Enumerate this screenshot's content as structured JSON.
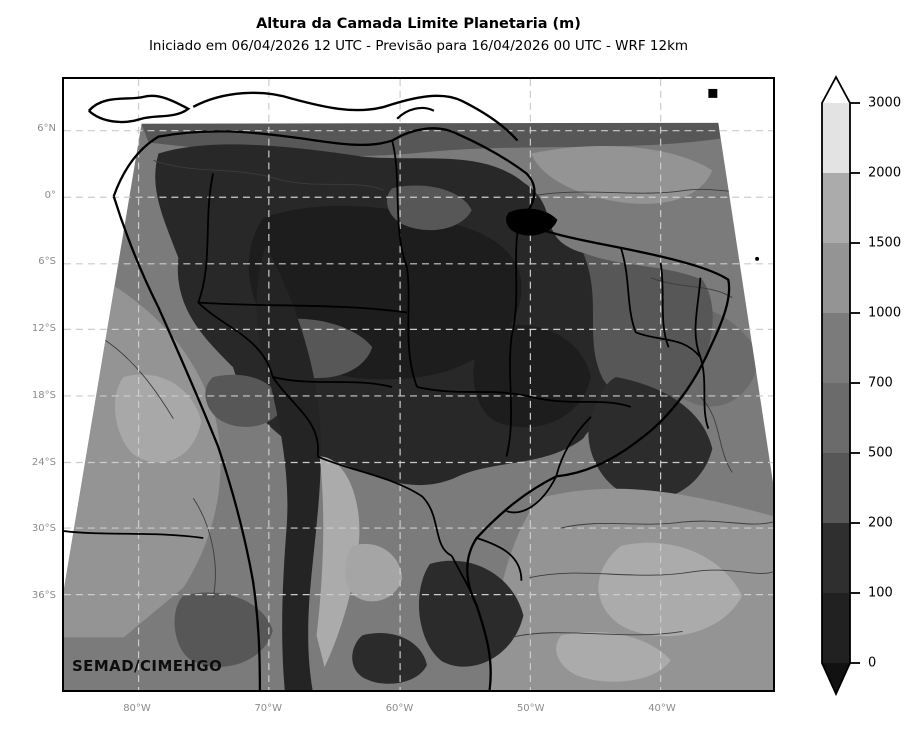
{
  "figure": {
    "title": "Altura da Camada Limite Planetaria (m)",
    "subtitle": "Iniciado em 06/04/2026 12 UTC - Previsão para 16/04/2026 00 UTC - WRF 12km",
    "watermark": "SEMAD/CIMEHGO"
  },
  "axes": {
    "lat_ticks": [
      "6°N",
      "0°",
      "6°S",
      "12°S",
      "18°S",
      "24°S",
      "30°S",
      "36°S"
    ],
    "lon_ticks": [
      "80°W",
      "70°W",
      "60°W",
      "50°W",
      "40°W"
    ]
  },
  "colorbar": {
    "tick_labels_top_to_bottom": [
      "3000",
      "2000",
      "1500",
      "1000",
      "700",
      "500",
      "200",
      "100",
      "0"
    ],
    "segment_colors_top_to_bottom": [
      "#e3e3e3",
      "#ababab",
      "#949494",
      "#7b7b7b",
      "#6b6b6b",
      "#575757",
      "#2f2f2f",
      "#212121"
    ],
    "extend_over_color": "#ffffff",
    "extend_under_color": "#111111"
  },
  "chart_data": {
    "type": "heatmap",
    "variant": "filled contour map over South America (grayscale, WRF model domain)",
    "title": "Altura da Camada Limite Planetaria (m)",
    "subtitle": "Iniciado em 06/04/2026 12 UTC - Previsão para 16/04/2026 00 UTC - WRF 12km",
    "variable": "Altura da Camada Limite Planetaria",
    "units": "m",
    "levels": [
      0,
      100,
      200,
      500,
      700,
      1000,
      1500,
      2000,
      3000
    ],
    "level_colors_low_to_high": [
      "#212121",
      "#2f2f2f",
      "#575757",
      "#6b6b6b",
      "#7b7b7b",
      "#949494",
      "#ababab",
      "#e3e3e3"
    ],
    "colorbar_extend": "both",
    "colorbar_position": "right",
    "x_tick_labels": [
      "80°W",
      "70°W",
      "60°W",
      "50°W",
      "40°W"
    ],
    "y_tick_labels": [
      "6°N",
      "0°",
      "6°S",
      "12°S",
      "18°S",
      "24°S",
      "30°S",
      "36°S"
    ],
    "grid": "dashed light-gray lat/lon gridlines",
    "field_summary": "Low PBL heights (0-200 m, near-black) over continental Brazil interior and Andes; mid values (500-1000 m, mid-gray) over oceans and NE coast; higher values (1000-2000 m, light gray) in patches over SE Atlantic, Pacific and Andes lee side",
    "watermark": "SEMAD/CIMEHGO"
  }
}
